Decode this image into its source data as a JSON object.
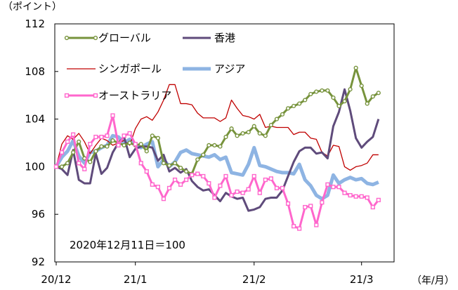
{
  "chart_data": {
    "type": "line",
    "y_unit_label": "（ポイント）",
    "x_unit_label": "（年/月）",
    "annotation": "2020年12月11日＝100",
    "ylim": [
      92,
      112
    ],
    "yticks": [
      "112",
      "108",
      "104",
      "100",
      "96",
      "92"
    ],
    "xticks": [
      {
        "label": "20/12",
        "x": 0
      },
      {
        "label": "21/1",
        "x": 14
      },
      {
        "label": "21/2",
        "x": 35
      },
      {
        "label": "21/3",
        "x": 54
      }
    ],
    "xlim": [
      0,
      57.5
    ],
    "grid": false,
    "legend_position": "top-left, inside plot",
    "series": [
      {
        "name": "グローバル",
        "color": "#77933c",
        "marker": "circle",
        "x": [
          0,
          1,
          2,
          3,
          4,
          5,
          6,
          7,
          8,
          9,
          10,
          11,
          12,
          13,
          14,
          15,
          16,
          17,
          18,
          19,
          20,
          21,
          22,
          23,
          24,
          25,
          26,
          27,
          28,
          29,
          30,
          31,
          32,
          33,
          34,
          35,
          36,
          37,
          38,
          39,
          40,
          41,
          42,
          43,
          44,
          45,
          46,
          47,
          48,
          49,
          50,
          51,
          52,
          53,
          54,
          55,
          56,
          57
        ],
        "values": [
          100.0,
          100.0,
          100.3,
          101.2,
          102.1,
          100.7,
          100.4,
          101.3,
          101.7,
          101.7,
          102.2,
          102.0,
          101.8,
          102.0,
          101.8,
          101.9,
          101.3,
          102.6,
          102.4,
          100.3,
          100.1,
          100.3,
          99.9,
          99.6,
          99.4,
          100.6,
          101.0,
          101.8,
          101.8,
          101.7,
          102.5,
          103.2,
          102.6,
          102.8,
          102.9,
          103.4,
          102.8,
          102.6,
          103.5,
          104.0,
          104.4,
          104.9,
          105.1,
          105.3,
          105.6,
          106.1,
          106.3,
          106.4,
          106.4,
          105.8,
          105.1,
          105.5,
          106.5,
          108.3,
          106.8,
          105.3,
          105.9,
          106.2
        ]
      },
      {
        "name": "香港",
        "color": "#5f4b7b",
        "marker": "none",
        "x": [
          0,
          1,
          2,
          3,
          4,
          5,
          6,
          7,
          8,
          9,
          10,
          11,
          12,
          13,
          14,
          15,
          16,
          17,
          18,
          19,
          20,
          21,
          22,
          23,
          24,
          25,
          26,
          27,
          28,
          29,
          30,
          31,
          32,
          33,
          34,
          35,
          36,
          37,
          38,
          39,
          40,
          41,
          42,
          43,
          44,
          45,
          46,
          47,
          48,
          49,
          50,
          51,
          52,
          53,
          54,
          55,
          56,
          57
        ],
        "values": [
          100.0,
          99.8,
          99.3,
          101.4,
          98.9,
          98.6,
          98.6,
          101.1,
          99.4,
          99.9,
          101.2,
          102.0,
          102.5,
          100.8,
          101.5,
          101.7,
          101.7,
          101.6,
          100.5,
          101.0,
          99.6,
          99.9,
          99.5,
          99.8,
          98.8,
          98.3,
          98.0,
          98.1,
          97.6,
          97.1,
          97.8,
          97.5,
          97.3,
          97.4,
          96.3,
          96.4,
          96.6,
          97.3,
          97.4,
          97.4,
          98.0,
          99.2,
          100.4,
          101.3,
          101.6,
          101.6,
          101.1,
          101.2,
          100.7,
          103.4,
          104.6,
          106.5,
          104.7,
          102.4,
          101.6,
          102.1,
          102.5,
          104.0
        ]
      },
      {
        "name": "シンガポール",
        "color": "#c00000",
        "marker": "none",
        "x": [
          0,
          1,
          2,
          3,
          4,
          5,
          6,
          7,
          8,
          9,
          10,
          11,
          12,
          13,
          14,
          15,
          16,
          17,
          18,
          19,
          20,
          21,
          22,
          23,
          24,
          25,
          26,
          27,
          28,
          29,
          30,
          31,
          32,
          33,
          34,
          35,
          36,
          37,
          38,
          39,
          40,
          41,
          42,
          43,
          44,
          45,
          46,
          47,
          48,
          49,
          50,
          51,
          52,
          53,
          54,
          55,
          56,
          57
        ],
        "values": [
          100.0,
          101.9,
          102.6,
          102.3,
          102.8,
          102.1,
          101.1,
          101.8,
          102.4,
          102.2,
          101.8,
          102.0,
          102.2,
          101.8,
          103.2,
          104.0,
          104.2,
          103.9,
          104.6,
          105.6,
          106.9,
          106.9,
          105.3,
          105.3,
          105.2,
          104.5,
          104.1,
          104.1,
          104.1,
          103.8,
          104.1,
          105.6,
          104.9,
          104.3,
          104.2,
          104.0,
          104.4,
          103.3,
          103.4,
          103.3,
          103.3,
          103.3,
          102.7,
          102.9,
          102.9,
          102.4,
          102.3,
          101.2,
          100.9,
          101.8,
          101.7,
          100.0,
          99.7,
          100.0,
          100.1,
          100.3,
          101.0,
          101.0
        ]
      },
      {
        "name": "アジア",
        "color": "#8eb4e3",
        "marker": "none",
        "x": [
          0,
          1,
          2,
          3,
          4,
          5,
          6,
          7,
          8,
          9,
          10,
          11,
          12,
          13,
          14,
          15,
          16,
          17,
          18,
          19,
          20,
          21,
          22,
          23,
          24,
          25,
          26,
          27,
          28,
          29,
          30,
          31,
          32,
          33,
          34,
          35,
          36,
          37,
          38,
          39,
          40,
          41,
          42,
          43,
          44,
          45,
          46,
          47,
          48,
          49,
          50,
          51,
          52,
          53,
          54,
          55,
          56,
          57
        ],
        "values": [
          100.0,
          100.8,
          101.3,
          102.2,
          100.9,
          100.3,
          101.2,
          101.3,
          101.6,
          101.8,
          102.6,
          102.5,
          102.0,
          102.3,
          101.8,
          101.6,
          101.9,
          102.1,
          100.0,
          100.6,
          100.0,
          100.4,
          101.2,
          101.4,
          101.1,
          101.0,
          100.9,
          100.8,
          101.0,
          100.6,
          100.8,
          99.5,
          99.4,
          99.3,
          100.2,
          101.6,
          100.1,
          100.0,
          99.8,
          99.6,
          99.5,
          99.5,
          99.4,
          100.2,
          98.9,
          98.4,
          97.6,
          97.3,
          97.6,
          99.3,
          98.6,
          98.9,
          99.1,
          98.9,
          99.0,
          98.6,
          98.5,
          98.7
        ]
      },
      {
        "name": "オーストラリア",
        "color": "#ff66cc",
        "marker": "square",
        "x": [
          0,
          1,
          2,
          3,
          4,
          5,
          6,
          7,
          8,
          9,
          10,
          11,
          12,
          13,
          14,
          15,
          16,
          17,
          18,
          19,
          20,
          21,
          22,
          23,
          24,
          25,
          26,
          27,
          28,
          29,
          30,
          31,
          32,
          33,
          34,
          35,
          36,
          37,
          38,
          39,
          40,
          41,
          42,
          43,
          44,
          45,
          46,
          47,
          48,
          49,
          50,
          51,
          52,
          53,
          54,
          55,
          56,
          57
        ],
        "values": [
          100.0,
          101.2,
          102.1,
          102.7,
          100.3,
          99.8,
          101.9,
          102.5,
          102.5,
          102.6,
          104.3,
          101.8,
          102.6,
          102.8,
          101.9,
          100.3,
          99.6,
          98.5,
          98.3,
          97.3,
          98.2,
          98.9,
          98.5,
          98.9,
          99.3,
          99.4,
          99.2,
          98.6,
          97.4,
          98.4,
          99.2,
          97.6,
          97.9,
          97.8,
          98.1,
          99.2,
          97.8,
          98.9,
          99.0,
          98.2,
          98.2,
          96.9,
          95.0,
          94.8,
          96.6,
          96.7,
          95.1,
          97.0,
          98.5,
          98.3,
          98.3,
          97.8,
          97.6,
          97.5,
          97.5,
          97.4,
          96.6,
          97.2
        ]
      }
    ]
  }
}
